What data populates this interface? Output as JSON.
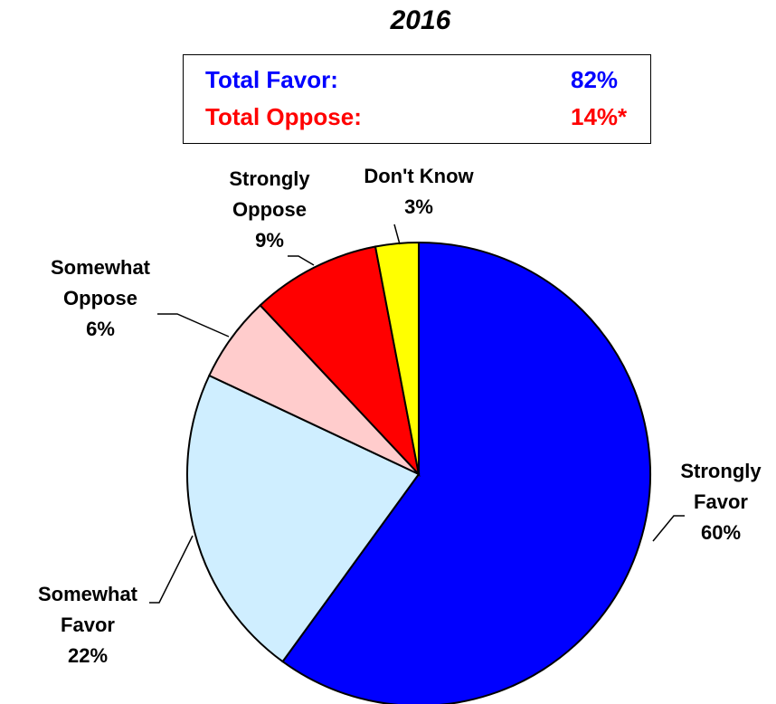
{
  "chart_data": {
    "type": "pie",
    "title": "2016",
    "summary": [
      {
        "label": "Total Favor:",
        "value": "82%",
        "color": "#0000ff"
      },
      {
        "label": "Total Oppose:",
        "value": "14%*",
        "color": "#ff0000"
      }
    ],
    "slices": [
      {
        "lines": [
          "Strongly",
          "Favor"
        ],
        "value": 60,
        "value_label": "60%",
        "color": "#0000ff"
      },
      {
        "lines": [
          "Somewhat",
          "Favor"
        ],
        "value": 22,
        "value_label": "22%",
        "color": "#cfeeff"
      },
      {
        "lines": [
          "Somewhat",
          "Oppose"
        ],
        "value": 6,
        "value_label": "6%",
        "color": "#ffcccc"
      },
      {
        "lines": [
          "Strongly",
          "Oppose"
        ],
        "value": 9,
        "value_label": "9%",
        "color": "#ff0000"
      },
      {
        "lines": [
          "Don't Know"
        ],
        "value": 3,
        "value_label": "3%",
        "color": "#ffff00"
      }
    ]
  }
}
